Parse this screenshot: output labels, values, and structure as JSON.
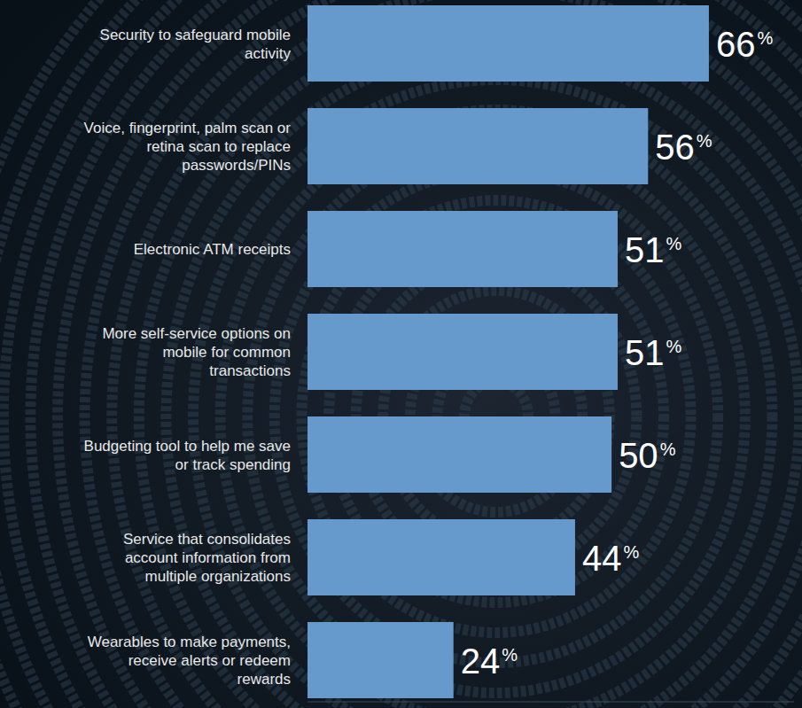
{
  "chart_data": {
    "type": "bar",
    "orientation": "horizontal",
    "categories": [
      "Security to safeguard mobile activity",
      "Voice, fingerprint, palm scan or retina scan to replace passwords/PINs",
      "Electronic ATM receipts",
      "More self-service options on mobile for common transactions",
      "Budgeting tool to help me save or track spending",
      "Service that consolidates account information from multiple organizations",
      "Wearables to make payments, receive alerts or redeem rewards"
    ],
    "values": [
      66,
      56,
      51,
      51,
      50,
      44,
      24
    ],
    "value_labels": [
      "66%",
      "56%",
      "51%",
      "51%",
      "50%",
      "44%",
      "24%"
    ],
    "color": "#6699cc",
    "xlim": [
      0,
      80
    ],
    "data_labels": true,
    "tick_labels": false,
    "grid": false
  }
}
